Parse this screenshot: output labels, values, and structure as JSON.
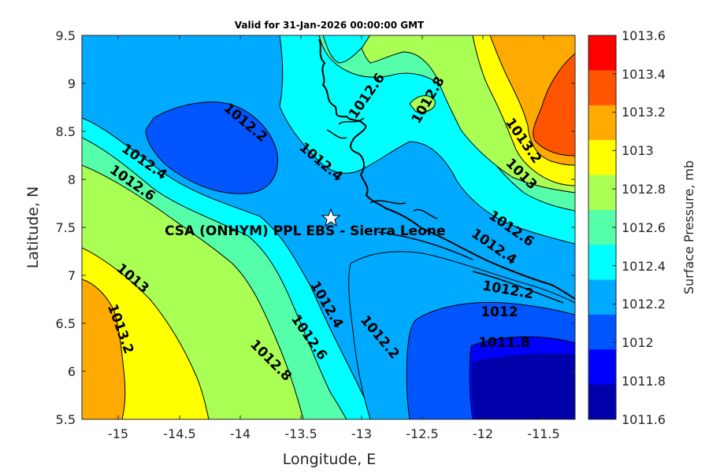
{
  "title": "Valid for 31-Jan-2026 00:00:00 GMT",
  "x_axis": {
    "label": "Longitude, E",
    "ticks": [
      "-15",
      "-14.5",
      "-14",
      "-13.5",
      "-13",
      "-12.5",
      "-12",
      "-11.5"
    ]
  },
  "y_axis": {
    "label": "Latitude, N",
    "ticks": [
      "9.5",
      "9",
      "8.5",
      "8",
      "7.5",
      "7",
      "6.5",
      "6",
      "5.5"
    ]
  },
  "colorbar": {
    "label": "Surface Pressure, mb",
    "ticks": [
      "1013.6",
      "1013.4",
      "1013.2",
      "1013",
      "1012.8",
      "1012.6",
      "1012.4",
      "1012.2",
      "1012",
      "1011.8",
      "1011.6"
    ],
    "colors": [
      "#ff0000",
      "#ff5500",
      "#ffaa00",
      "#ffff00",
      "#aaff55",
      "#55ffaa",
      "#00ffff",
      "#00aaff",
      "#0055ff",
      "#0000ff",
      "#0000aa"
    ]
  },
  "station": {
    "label": "CSA (ONHYM) PPL EBS  - Sierra Leone",
    "marker": "star",
    "lon": -13.23,
    "lat": 7.6
  },
  "contour_labels": [
    "1012.6",
    "1012.8",
    "1012.2",
    "1012.4",
    "1012.4",
    "1012.6",
    "1013.2",
    "1013",
    "1012.6",
    "1012.4",
    "1013",
    "1013.2",
    "1012.4",
    "1012.2",
    "1012.6",
    "1012.8",
    "1012.2",
    "1012",
    "1011.8"
  ],
  "chart_data": {
    "type": "heatmap",
    "title": "Valid for 31-Jan-2026 00:00:00 GMT",
    "xlabel": "Longitude, E",
    "ylabel": "Latitude, N",
    "xlim": [
      -15.25,
      -11.25
    ],
    "ylim": [
      5.5,
      9.5
    ],
    "colorbar_label": "Surface Pressure, mb",
    "levels": [
      1011.6,
      1011.8,
      1012,
      1012.2,
      1012.4,
      1012.6,
      1012.8,
      1013,
      1013.2,
      1013.4,
      1013.6
    ],
    "contour_values": [
      1011.8,
      1012,
      1012.2,
      1012.4,
      1012.6,
      1012.8,
      1013,
      1013.2
    ],
    "station": {
      "name": "CSA (ONHYM) PPL EBS  - Sierra Leone",
      "lon": -13.23,
      "lat": 7.6
    }
  }
}
